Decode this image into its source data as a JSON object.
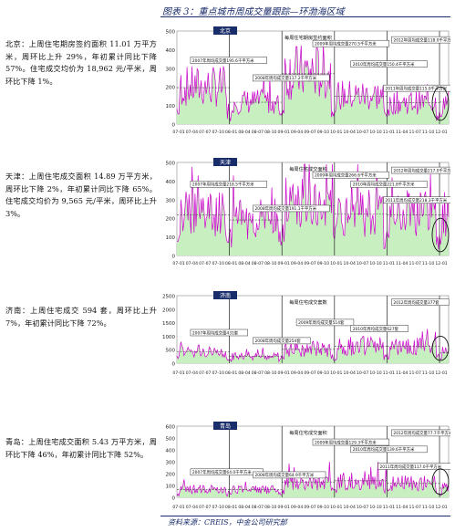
{
  "figure_title": "图表 3：重点城市周成交量跟踪—环渤海区域",
  "source_note": "资料来源：CREIS，中金公司研究部",
  "colors": {
    "area": "#c8efc0",
    "line": "#cc00cc",
    "vline": "#222222",
    "label_bg": "#1a2d6b"
  },
  "texts": [
    "北京：上周住宅期房签约面积 11.01 万平方米，周环比上升 29%，年初累计同比下降 57%。住宅成交均价为 18,962 元/平米，周环比下降 1%。",
    "天津：上周住宅成交面积 14.89 万平方米，周环比下降 2%，年初累计同比下降 65%。住宅成交均价为 9,565 元/平米，周环比上升 3%。",
    "济南：上周住宅成交 594 套，周环比上升 7%，年初累计同比下降 72%。",
    "青岛：上周住宅成交面积 5.43 万平方米，周环比下降 46%，年初累计同比下降 52%。"
  ],
  "chart_data": [
    {
      "type": "area",
      "city_label": "北京",
      "unit_label": "",
      "title": "每周住宅期房签约面积",
      "ylim": [
        0,
        500
      ],
      "yticks": [
        "0",
        "100",
        "200",
        "300",
        "400",
        "500"
      ],
      "xticks": [
        "07-01",
        "07-04",
        "07-07",
        "07-10",
        "08-01",
        "08-04",
        "08-07",
        "08-10",
        "09-01",
        "09-04",
        "09-07",
        "09-10",
        "10-01",
        "10-04",
        "10-07",
        "10-10",
        "11-01",
        "11-04",
        "11-07",
        "11-10",
        "12-01"
      ],
      "annotations": [
        "2007年周均成交量195.6千平方米",
        "2008年周均成交量117.2千平方米",
        "2009年周均成交量270.5千平方米",
        "2010年周均成交量150.4千平方米",
        "2011年周均成交量115.0千平方米",
        "2012年周均成交量118.0千平方米"
      ],
      "year_means": [
        195.6,
        117.2,
        270.5,
        150.4,
        115.0,
        118.0
      ]
    },
    {
      "type": "area",
      "city_label": "天津",
      "unit_label": "",
      "title": "每周住宅成交面积",
      "ylim": [
        0,
        500
      ],
      "yticks": [
        "0",
        "100",
        "200",
        "300",
        "400",
        "500"
      ],
      "xticks": [
        "07-01",
        "07-04",
        "07-07",
        "07-10",
        "08-01",
        "08-04",
        "08-07",
        "08-10",
        "09-01",
        "09-04",
        "09-07",
        "09-10",
        "10-01",
        "10-04",
        "10-07",
        "10-10",
        "11-01",
        "11-04",
        "11-07",
        "11-10",
        "12-01"
      ],
      "annotations": [
        "2007年周均成交量218.5千平方米",
        "2008年周均成交量191.1千平方米",
        "2009年周均成交量266.6千平方米",
        "2010年周均成交量221.8千平方米",
        "2011年周均成交量218.3千平方米",
        "2012年周均成交量217.0千平方米"
      ],
      "year_means": [
        218.5,
        191.1,
        266.6,
        221.8,
        218.3,
        217.0
      ]
    },
    {
      "type": "area",
      "city_label": "济南",
      "unit_label": "",
      "title": "每周住宅成交套数",
      "ylim": [
        0,
        2500
      ],
      "yticks": [
        "0",
        "500",
        "1000",
        "1500",
        "2000",
        "2500"
      ],
      "xticks": [
        "07-01",
        "07-04",
        "07-07",
        "07-10",
        "08-01",
        "08-04",
        "08-07",
        "08-10",
        "09-01",
        "09-04",
        "09-07",
        "09-10",
        "10-01",
        "10-04",
        "10-07",
        "10-10",
        "11-01",
        "11-04",
        "11-07",
        "11-10",
        "12-01"
      ],
      "annotations": [
        "2007年周均成交量431套",
        "2008年周均成交量254套",
        "2009年周均成交量514套",
        "2010年周均成交量627套",
        "2012年周均成交量377套"
      ],
      "year_means": [
        431,
        254,
        514,
        627,
        627,
        377
      ]
    },
    {
      "type": "area",
      "city_label": "青岛",
      "unit_label": "",
      "title": "每周住宅成交面积",
      "ylim": [
        0,
        600
      ],
      "yticks": [
        "0",
        "100",
        "200",
        "300",
        "400",
        "500",
        "600"
      ],
      "xticks": [
        "07-01",
        "07-04",
        "07-07",
        "07-10",
        "08-01",
        "08-04",
        "08-07",
        "08-10",
        "09-01",
        "09-04",
        "09-07",
        "09-10",
        "10-01",
        "10-04",
        "10-07",
        "10-10",
        "11-01",
        "11-04",
        "11-07",
        "11-10",
        "12-01"
      ],
      "annotations": [
        "2007年周均成交量64.0千平方米",
        "2008年周均成交量64.9千平方米",
        "2009年周均成交量129.3千平方米",
        "2010年周均成交量139.6千平方米",
        "2011年周均成交量117.0千平方米",
        "2012年周均成交量77.7千平方米"
      ],
      "year_means": [
        64.0,
        64.9,
        129.3,
        139.6,
        117.0,
        77.7
      ]
    }
  ]
}
